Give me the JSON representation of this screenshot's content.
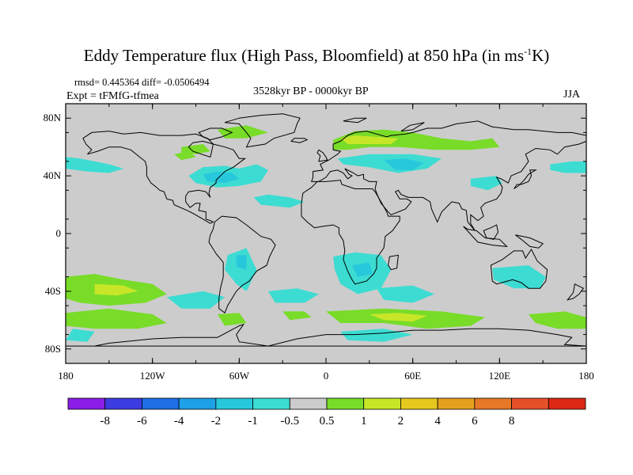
{
  "title": {
    "main": "Eddy Temperature flux (High Pass, Bloomfield) at 850 hPa (in ms",
    "sup": "-1",
    "end": "K)"
  },
  "stats_text": "rmsd= 0.445364 diff= -0.0506494",
  "expt_text": "Expt = tFMfG-tfmea",
  "period_text": "3528kyr BP - 0000kyr BP",
  "season_text": "JJA",
  "map": {
    "lon_range": [
      -180,
      180
    ],
    "lat_range": [
      -90,
      90
    ],
    "background_color": "#cccccc",
    "lat_ticks": [
      {
        "lat": 80,
        "label": "80N"
      },
      {
        "lat": 40,
        "label": "40N"
      },
      {
        "lat": 0,
        "label": "0"
      },
      {
        "lat": -40,
        "label": "40S"
      },
      {
        "lat": -80,
        "label": "80S"
      }
    ],
    "lon_ticks": [
      {
        "lon": -180,
        "label": "180"
      },
      {
        "lon": -120,
        "label": "120W"
      },
      {
        "lon": -60,
        "label": "60W"
      },
      {
        "lon": 0,
        "label": "0"
      },
      {
        "lon": 60,
        "label": "60E"
      },
      {
        "lon": 120,
        "label": "120E"
      },
      {
        "lon": 180,
        "label": "180"
      }
    ]
  },
  "colorbar": {
    "colors": [
      "#8a1ee6",
      "#3c3ce0",
      "#1e6ee6",
      "#1ea0e6",
      "#28c8dc",
      "#3cdcd2",
      "#cccccc",
      "#78dc28",
      "#c8e628",
      "#e6c81e",
      "#e6a01e",
      "#e67828",
      "#e65028",
      "#dc2814"
    ],
    "labels": [
      "-8",
      "-6",
      "-4",
      "-2",
      "-1",
      "-0.5",
      "0.5",
      "1",
      "2",
      "4",
      "6",
      "8"
    ]
  },
  "anomaly_colors": {
    "neg_small": "#3cdcd2",
    "neg_mid": "#28c8dc",
    "neg_large": "#1ea0e6",
    "pos_small": "#78dc28",
    "pos_mid": "#c8e628",
    "pos_large": "#e6c81e"
  }
}
